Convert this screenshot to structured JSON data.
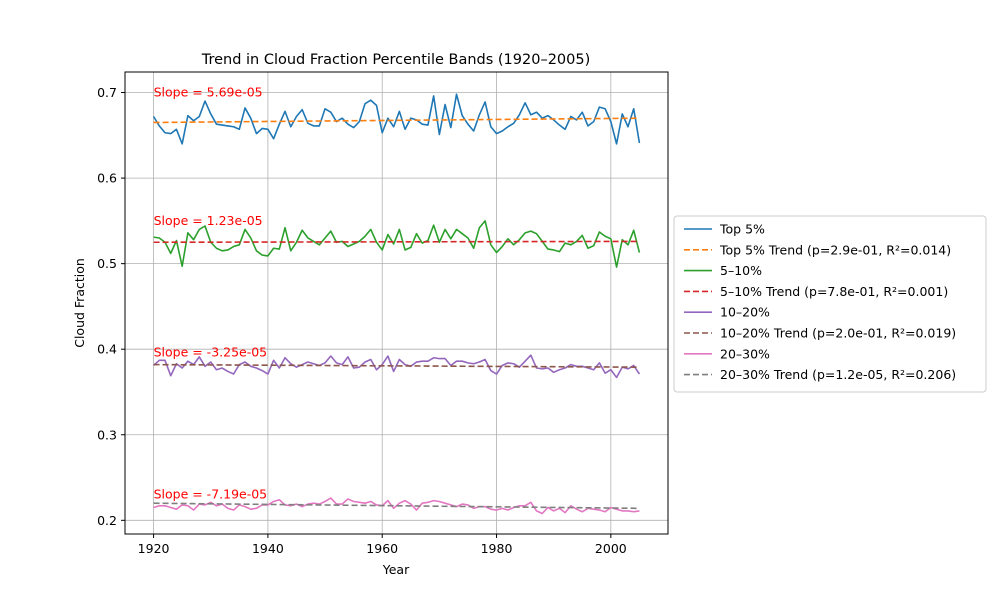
{
  "chart_data": {
    "type": "line",
    "title": "Trend in Cloud Fraction Percentile Bands (1920–2005)",
    "xlabel": "Year",
    "ylabel": "Cloud Fraction",
    "xlim": [
      1915,
      2010
    ],
    "ylim": [
      0.184,
      0.724
    ],
    "xticks": [
      1920,
      1940,
      1960,
      1980,
      2000
    ],
    "yticks": [
      0.2,
      0.3,
      0.4,
      0.5,
      0.6,
      0.7
    ],
    "ytick_labels": [
      "0.2",
      "0.3",
      "0.4",
      "0.5",
      "0.6",
      "0.7"
    ],
    "grid": true,
    "legend_position": "right, outside plot",
    "x_start": 1920,
    "x_end": 2005,
    "series": [
      {
        "name": "Top 5%",
        "color": "#1f77b4",
        "values": [
          0.672,
          0.661,
          0.653,
          0.652,
          0.657,
          0.64,
          0.673,
          0.667,
          0.672,
          0.69,
          0.675,
          0.663,
          0.662,
          0.661,
          0.66,
          0.657,
          0.682,
          0.67,
          0.652,
          0.658,
          0.657,
          0.646,
          0.663,
          0.678,
          0.66,
          0.672,
          0.68,
          0.664,
          0.661,
          0.661,
          0.681,
          0.677,
          0.666,
          0.67,
          0.663,
          0.659,
          0.666,
          0.687,
          0.691,
          0.685,
          0.653,
          0.67,
          0.66,
          0.678,
          0.657,
          0.67,
          0.668,
          0.663,
          0.662,
          0.696,
          0.651,
          0.686,
          0.659,
          0.698,
          0.673,
          0.663,
          0.655,
          0.674,
          0.689,
          0.66,
          0.652,
          0.655,
          0.66,
          0.664,
          0.674,
          0.688,
          0.674,
          0.677,
          0.67,
          0.673,
          0.668,
          0.662,
          0.657,
          0.672,
          0.668,
          0.677,
          0.661,
          0.666,
          0.683,
          0.681,
          0.666,
          0.64,
          0.675,
          0.66,
          0.681,
          0.641
        ]
      },
      {
        "name": "Top 5% Trend (p=2.9e-01, R²=0.014)",
        "color": "#ff7f0e",
        "dashed": true,
        "trend": [
          0.665,
          0.67
        ]
      },
      {
        "name": "5–10%",
        "color": "#2ca02c",
        "values": [
          0.531,
          0.53,
          0.525,
          0.512,
          0.527,
          0.497,
          0.536,
          0.528,
          0.54,
          0.544,
          0.525,
          0.518,
          0.515,
          0.516,
          0.52,
          0.522,
          0.54,
          0.53,
          0.515,
          0.51,
          0.509,
          0.518,
          0.517,
          0.542,
          0.515,
          0.525,
          0.539,
          0.53,
          0.526,
          0.522,
          0.53,
          0.538,
          0.525,
          0.526,
          0.52,
          0.523,
          0.526,
          0.532,
          0.54,
          0.525,
          0.516,
          0.534,
          0.523,
          0.54,
          0.516,
          0.519,
          0.535,
          0.524,
          0.527,
          0.545,
          0.525,
          0.54,
          0.529,
          0.54,
          0.535,
          0.53,
          0.518,
          0.542,
          0.55,
          0.522,
          0.513,
          0.52,
          0.529,
          0.522,
          0.528,
          0.536,
          0.538,
          0.535,
          0.526,
          0.517,
          0.516,
          0.514,
          0.524,
          0.522,
          0.526,
          0.533,
          0.518,
          0.521,
          0.537,
          0.532,
          0.529,
          0.496,
          0.528,
          0.522,
          0.539,
          0.513
        ]
      },
      {
        "name": "5–10% Trend (p=7.8e-01, R²=0.001)",
        "color": "#d62728",
        "dashed": true,
        "trend": [
          0.525,
          0.526
        ]
      },
      {
        "name": "10–20%",
        "color": "#9467bd",
        "values": [
          0.381,
          0.387,
          0.387,
          0.369,
          0.383,
          0.378,
          0.386,
          0.382,
          0.391,
          0.38,
          0.385,
          0.376,
          0.378,
          0.374,
          0.371,
          0.382,
          0.385,
          0.38,
          0.378,
          0.375,
          0.371,
          0.387,
          0.378,
          0.39,
          0.383,
          0.379,
          0.382,
          0.385,
          0.383,
          0.381,
          0.384,
          0.392,
          0.384,
          0.382,
          0.391,
          0.378,
          0.379,
          0.385,
          0.388,
          0.376,
          0.382,
          0.392,
          0.374,
          0.388,
          0.382,
          0.38,
          0.385,
          0.386,
          0.386,
          0.39,
          0.389,
          0.389,
          0.381,
          0.386,
          0.386,
          0.384,
          0.383,
          0.385,
          0.388,
          0.375,
          0.371,
          0.381,
          0.384,
          0.383,
          0.379,
          0.386,
          0.393,
          0.378,
          0.377,
          0.378,
          0.373,
          0.376,
          0.378,
          0.382,
          0.38,
          0.38,
          0.378,
          0.376,
          0.384,
          0.372,
          0.376,
          0.367,
          0.379,
          0.377,
          0.381,
          0.371
        ]
      },
      {
        "name": "10–20% Trend (p=2.0e-01, R²=0.019)",
        "color": "#8c564b",
        "dashed": true,
        "trend": [
          0.382,
          0.379
        ]
      },
      {
        "name": "20–30%",
        "color": "#e377c2",
        "values": [
          0.215,
          0.217,
          0.217,
          0.215,
          0.213,
          0.218,
          0.217,
          0.212,
          0.219,
          0.218,
          0.221,
          0.217,
          0.219,
          0.214,
          0.212,
          0.218,
          0.216,
          0.213,
          0.214,
          0.218,
          0.218,
          0.222,
          0.224,
          0.218,
          0.217,
          0.219,
          0.216,
          0.219,
          0.22,
          0.219,
          0.222,
          0.226,
          0.219,
          0.219,
          0.225,
          0.222,
          0.221,
          0.22,
          0.222,
          0.218,
          0.217,
          0.223,
          0.214,
          0.22,
          0.223,
          0.219,
          0.212,
          0.22,
          0.221,
          0.223,
          0.222,
          0.22,
          0.218,
          0.216,
          0.219,
          0.218,
          0.214,
          0.216,
          0.216,
          0.213,
          0.212,
          0.214,
          0.212,
          0.215,
          0.217,
          0.217,
          0.221,
          0.211,
          0.208,
          0.215,
          0.211,
          0.214,
          0.209,
          0.217,
          0.213,
          0.21,
          0.214,
          0.213,
          0.212,
          0.21,
          0.215,
          0.213,
          0.211,
          0.211,
          0.21,
          0.211
        ]
      },
      {
        "name": "20–30% Trend (p=1.2e-05, R²=0.206)",
        "color": "#7f7f7f",
        "dashed": true,
        "trend": [
          0.22,
          0.214
        ]
      }
    ],
    "annotations": [
      {
        "text": "Slope = 5.69e-05",
        "x": 1920,
        "y": 0.7,
        "color": "#ff0000"
      },
      {
        "text": "Slope = 1.23e-05",
        "x": 1920,
        "y": 0.55,
        "color": "#ff0000"
      },
      {
        "text": "Slope = -3.25e-05",
        "x": 1920,
        "y": 0.396,
        "color": "#ff0000"
      },
      {
        "text": "Slope = -7.19e-05",
        "x": 1920,
        "y": 0.23,
        "color": "#ff0000"
      }
    ]
  }
}
